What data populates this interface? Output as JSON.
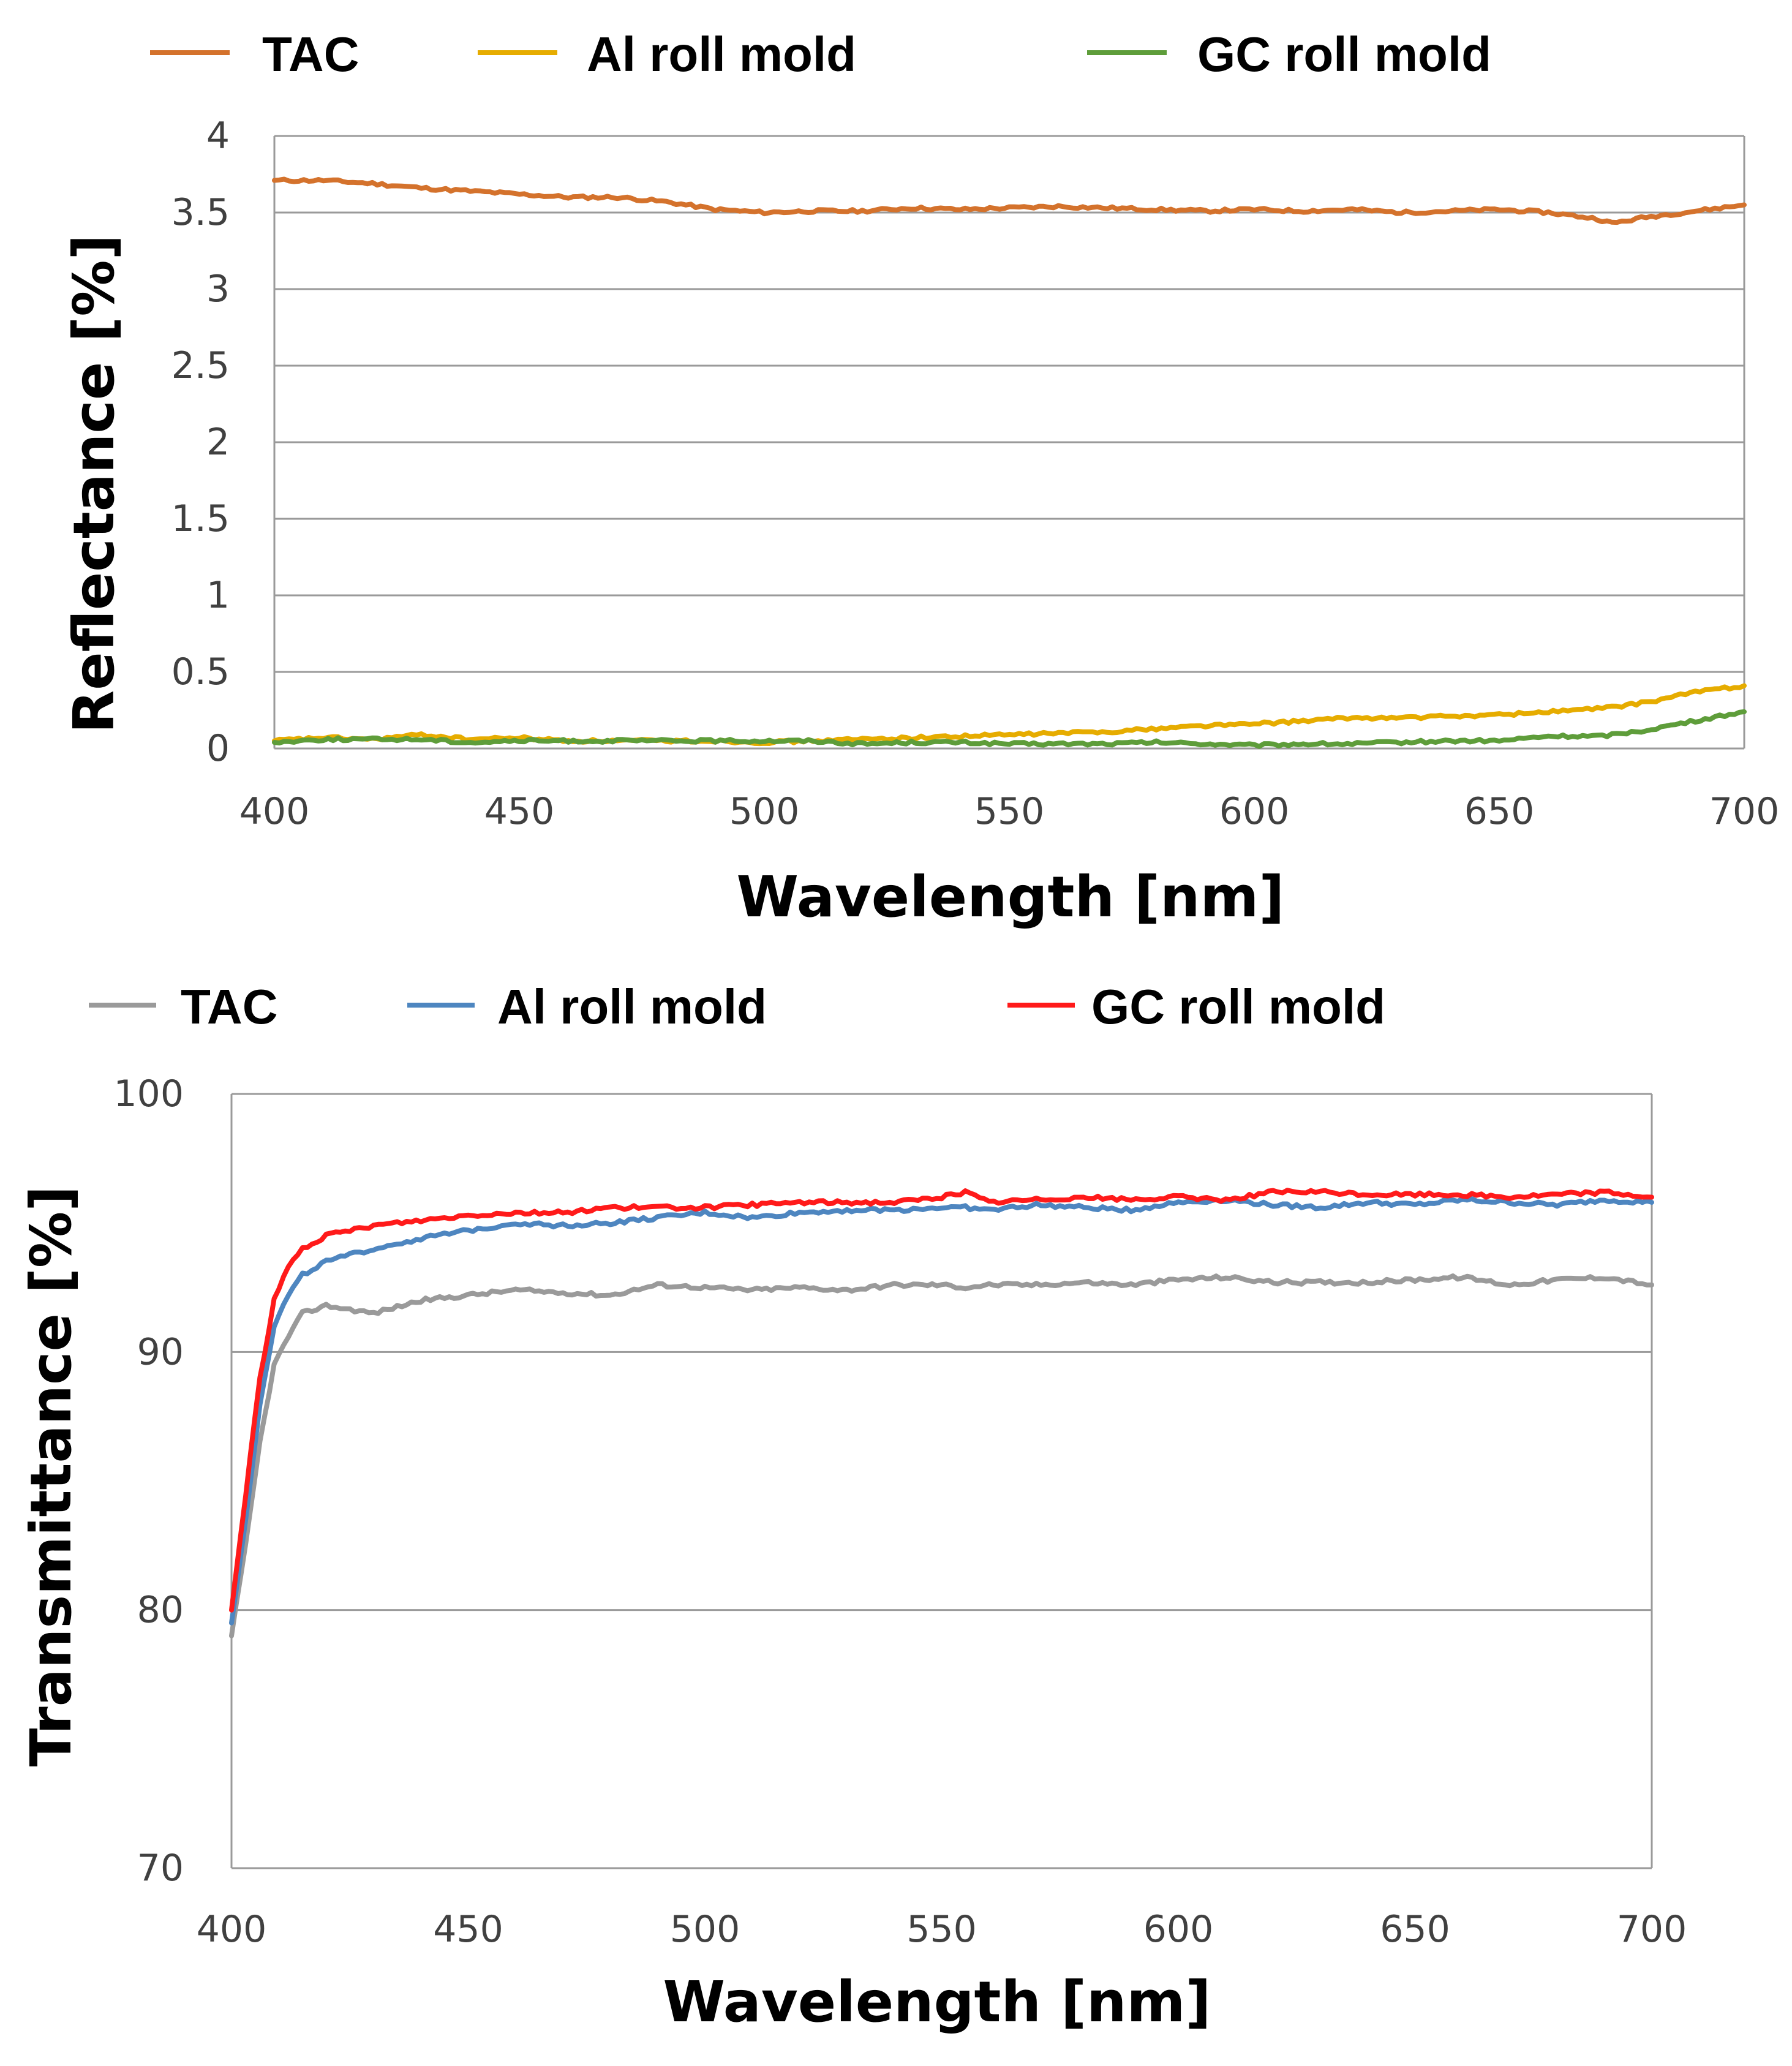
{
  "chart_data": [
    {
      "type": "line",
      "id": "reflectance",
      "title": "",
      "xlabel": "Wavelength [nm]",
      "ylabel": "Reflectance [%]",
      "xlim": [
        400,
        700
      ],
      "ylim": [
        0,
        4
      ],
      "xticks": [
        "400",
        "450",
        "500",
        "550",
        "600",
        "650",
        "700"
      ],
      "yticks": [
        "0",
        "0.5",
        "1",
        "1.5",
        "2",
        "2.5",
        "3",
        "3.5",
        "4"
      ],
      "grid": "horizontal",
      "legend_position": "top",
      "x": [
        400,
        410,
        420,
        430,
        440,
        450,
        460,
        470,
        480,
        490,
        500,
        510,
        520,
        530,
        540,
        550,
        560,
        570,
        580,
        590,
        600,
        610,
        620,
        630,
        640,
        650,
        660,
        670,
        673,
        680,
        690,
        700
      ],
      "series": [
        {
          "name": "TAC",
          "color": "#d4722c",
          "values": [
            3.71,
            3.71,
            3.69,
            3.66,
            3.64,
            3.62,
            3.6,
            3.6,
            3.57,
            3.52,
            3.5,
            3.51,
            3.51,
            3.53,
            3.52,
            3.53,
            3.54,
            3.53,
            3.52,
            3.51,
            3.52,
            3.51,
            3.52,
            3.5,
            3.51,
            3.52,
            3.5,
            3.46,
            3.43,
            3.47,
            3.51,
            3.55
          ]
        },
        {
          "name": "Al roll mold",
          "color": "#e6ac00",
          "values": [
            0.05,
            0.07,
            0.06,
            0.09,
            0.06,
            0.07,
            0.05,
            0.05,
            0.05,
            0.05,
            0.04,
            0.05,
            0.06,
            0.07,
            0.08,
            0.09,
            0.1,
            0.11,
            0.13,
            0.15,
            0.16,
            0.18,
            0.2,
            0.2,
            0.21,
            0.22,
            0.24,
            0.26,
            0.27,
            0.3,
            0.37,
            0.41
          ]
        },
        {
          "name": "GC roll mold",
          "color": "#5e9d3a",
          "values": [
            0.04,
            0.06,
            0.06,
            0.06,
            0.04,
            0.05,
            0.05,
            0.05,
            0.05,
            0.05,
            0.05,
            0.05,
            0.03,
            0.04,
            0.04,
            0.03,
            0.03,
            0.03,
            0.04,
            0.03,
            0.02,
            0.03,
            0.03,
            0.04,
            0.05,
            0.05,
            0.08,
            0.08,
            0.09,
            0.12,
            0.18,
            0.24
          ]
        }
      ]
    },
    {
      "type": "line",
      "id": "transmittance",
      "title": "",
      "xlabel": "Wavelength [nm]",
      "ylabel": "Transmittance [%]",
      "xlim": [
        400,
        700
      ],
      "ylim": [
        70,
        100
      ],
      "xticks": [
        "400",
        "450",
        "500",
        "550",
        "600",
        "650",
        "700"
      ],
      "yticks": [
        "70",
        "80",
        "90",
        "100"
      ],
      "grid": "horizontal",
      "legend_position": "top",
      "x": [
        400,
        403,
        406,
        409,
        412,
        415,
        420,
        430,
        440,
        450,
        460,
        470,
        480,
        490,
        500,
        510,
        520,
        530,
        540,
        550,
        555,
        560,
        570,
        580,
        590,
        600,
        610,
        620,
        630,
        640,
        650,
        660,
        670,
        680,
        690,
        700
      ],
      "series": [
        {
          "name": "TAC",
          "color": "#9a9a9a",
          "values": [
            79.0,
            82.5,
            86.5,
            89.5,
            90.6,
            91.5,
            91.8,
            91.5,
            92.0,
            92.2,
            92.4,
            92.3,
            92.2,
            92.6,
            92.5,
            92.4,
            92.5,
            92.4,
            92.6,
            92.6,
            92.5,
            92.6,
            92.6,
            92.7,
            92.6,
            92.8,
            92.9,
            92.7,
            92.7,
            92.7,
            92.8,
            92.9,
            92.6,
            92.8,
            92.9,
            92.6
          ]
        },
        {
          "name": "Al roll mold",
          "color": "#4e86c0",
          "values": [
            79.5,
            83.5,
            88.0,
            91.0,
            92.2,
            93.0,
            93.5,
            94.0,
            94.4,
            94.7,
            95.0,
            94.9,
            95.0,
            95.2,
            95.4,
            95.2,
            95.4,
            95.5,
            95.5,
            95.6,
            95.6,
            95.5,
            95.7,
            95.6,
            95.5,
            95.8,
            95.9,
            95.7,
            95.6,
            95.8,
            95.7,
            95.9,
            95.8,
            95.7,
            95.9,
            95.8
          ]
        },
        {
          "name": "GC roll mold",
          "color": "#ff1a1a",
          "values": [
            80.0,
            84.5,
            89.0,
            92.0,
            93.3,
            94.0,
            94.5,
            94.9,
            95.1,
            95.3,
            95.4,
            95.4,
            95.6,
            95.6,
            95.6,
            95.7,
            95.8,
            95.8,
            95.8,
            96.0,
            96.2,
            95.8,
            95.9,
            96.0,
            95.9,
            96.0,
            95.9,
            96.2,
            96.2,
            96.1,
            96.1,
            96.1,
            96.0,
            96.1,
            96.2,
            96.0
          ]
        }
      ]
    }
  ]
}
